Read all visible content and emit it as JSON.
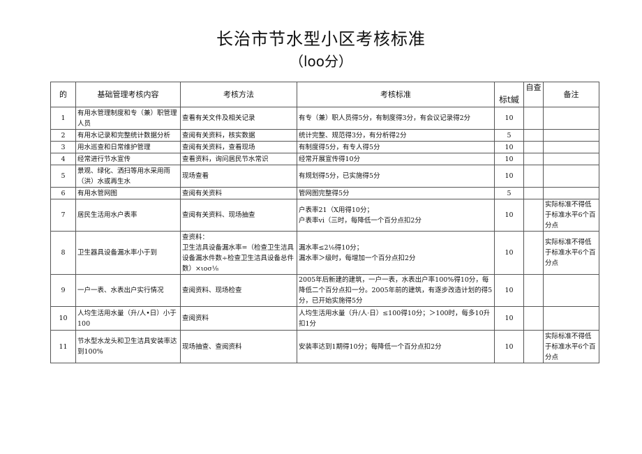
{
  "title": "长治市节水型小区考核标准",
  "subtitle": "（loo分）",
  "headers": {
    "no": "的",
    "content": "基础管理考核内容",
    "method": "考核方法",
    "criteria": "考核标准",
    "score": "标t緘",
    "self": "自查",
    "note": "备注"
  },
  "rows": [
    {
      "no": "1",
      "content": "有用水管理制度和专（兼）职管理人员",
      "method": "查看有关文件及相关记录",
      "criteria": "有专（兼）职人员得5分，有制度得3分，有会议记录得2分",
      "score": "10",
      "self": "",
      "note": ""
    },
    {
      "no": "2",
      "content": "有用水记录和完整统计数据分析",
      "method": "查阅有关资料，核实数据",
      "criteria": "统计完整、规范得3分，有分析得2分",
      "score": "5",
      "self": "",
      "note": ""
    },
    {
      "no": "3",
      "content": "用水巡查和日常维护管理",
      "method": "查阅有关资料，查看现场",
      "criteria": "有制度得5分，有专人得5分",
      "score": "10",
      "self": "",
      "note": ""
    },
    {
      "no": "4",
      "content": "经常进行节水宣传",
      "method": "查看资料，询问居民节水常识",
      "criteria": "经常开展宣传得10分",
      "score": "10",
      "self": "",
      "note": ""
    },
    {
      "no": "5",
      "content": "景观、绿化、洒扫等用水采用雨（洪）水或再生水",
      "method": "现场查看",
      "criteria": "有规划得5分，已实施得5分",
      "score": "10",
      "self": "",
      "note": ""
    },
    {
      "no": "6",
      "content": "有用水管网图",
      "method": "查阅有关资料",
      "criteria": "管网图完整得5分",
      "score": "5",
      "self": "",
      "note": ""
    },
    {
      "no": "7",
      "content": "居民生活用水户表率",
      "method": "查阅有关资料、现场抽查",
      "criteria": "户表率21（X用得10分；\n户表率vi（三时，每降低一个百分点扣2分",
      "score": "10",
      "self": "",
      "note": "实际标准不得低于标准水平6个百分点"
    },
    {
      "no": "8",
      "content": "卫生器具设备漏水率小于到",
      "method": "查资料：\n卫生洁具设备漏水率=（检查卫生洁具设备漏水件数÷检查卫生洁具设备总件数）×ιoσ⅛",
      "criteria": "漏水率≤2⅛得10分；\n漏水率＞级时，每增加一个百分点扣2分",
      "score": "10",
      "self": "",
      "note": "实际标准不得低于标准水平6个百分点"
    },
    {
      "no": "9",
      "content": "一户一表、水表出户实行情况",
      "method": "查阅资料、现场检查",
      "criteria": "2005年后新建的建筑，一户一表，水表出户率100%得10分，每降低二个百分点扣一分。2005年前的建筑，有逐步改造计划的得5分，已开始实施得5分",
      "score": "10",
      "self": "",
      "note": ""
    },
    {
      "no": "10",
      "content": "人均生活用水量（升/人•日）小于100",
      "method": "查阅资料",
      "criteria": "人均生活用水量（升/人·日）≤100得10分；＞100时，每多10升扣1分",
      "score": "10",
      "self": "",
      "note": ""
    },
    {
      "no": "11",
      "content": "节水型水龙头和卫生洁具安装率达到100%",
      "method": "现场抽查、查阅资料",
      "criteria": "安装率达到1期得10分；每降低一个百分点扣2分",
      "score": "10",
      "self": "",
      "note": "实际标准不得低于标准水平6个百分点"
    }
  ]
}
